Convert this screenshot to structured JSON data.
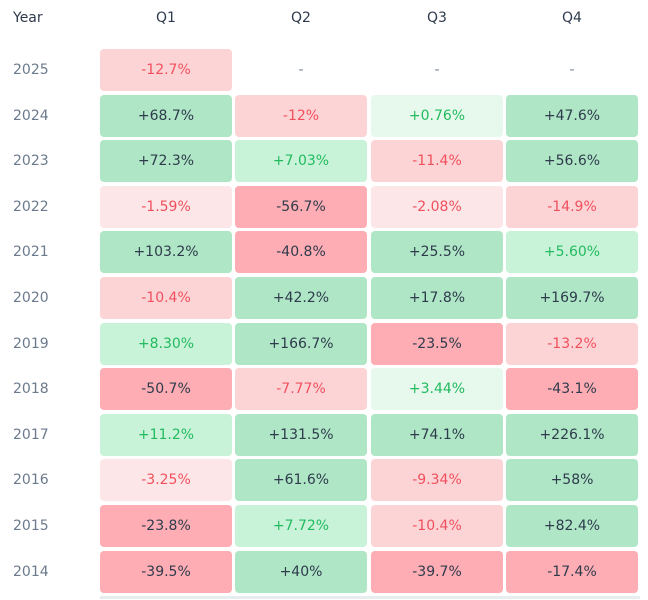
{
  "chart_data": {
    "type": "heatmap",
    "corner_label": "Year",
    "columns": [
      "Q1",
      "Q2",
      "Q3",
      "Q4"
    ],
    "rows": [
      "2025",
      "2024",
      "2023",
      "2022",
      "2021",
      "2020",
      "2019",
      "2018",
      "2017",
      "2016",
      "2015",
      "2014"
    ],
    "cells": [
      [
        "-12.7%",
        "-",
        "-",
        "-"
      ],
      [
        "+68.7%",
        "-12%",
        "+0.76%",
        "+47.6%"
      ],
      [
        "+72.3%",
        "+7.03%",
        "-11.4%",
        "+56.6%"
      ],
      [
        "-1.59%",
        "-56.7%",
        "-2.08%",
        "-14.9%"
      ],
      [
        "+103.2%",
        "-40.8%",
        "+25.5%",
        "+5.60%"
      ],
      [
        "-10.4%",
        "+42.2%",
        "+17.8%",
        "+169.7%"
      ],
      [
        "+8.30%",
        "+166.7%",
        "-23.5%",
        "-13.2%"
      ],
      [
        "-50.7%",
        "-7.77%",
        "+3.44%",
        "-43.1%"
      ],
      [
        "+11.2%",
        "+131.5%",
        "+74.1%",
        "+226.1%"
      ],
      [
        "-3.25%",
        "+61.6%",
        "-9.34%",
        "+58%"
      ],
      [
        "-23.8%",
        "+7.72%",
        "-10.4%",
        "+82.4%"
      ],
      [
        "-39.5%",
        "+40%",
        "-39.7%",
        "-17.4%"
      ]
    ],
    "values": [
      [
        -12.7,
        null,
        null,
        null
      ],
      [
        68.7,
        -12,
        0.76,
        47.6
      ],
      [
        72.3,
        7.03,
        -11.4,
        56.6
      ],
      [
        -1.59,
        -56.7,
        -2.08,
        -14.9
      ],
      [
        103.2,
        -40.8,
        25.5,
        5.6
      ],
      [
        -10.4,
        42.2,
        17.8,
        169.7
      ],
      [
        8.3,
        166.7,
        -23.5,
        -13.2
      ],
      [
        -50.7,
        -7.77,
        3.44,
        -43.1
      ],
      [
        11.2,
        131.5,
        74.1,
        226.1
      ],
      [
        -3.25,
        61.6,
        -9.34,
        58
      ],
      [
        -23.8,
        7.72,
        -10.4,
        82.4
      ],
      [
        -39.5,
        40,
        -39.7,
        -17.4
      ]
    ],
    "colors": {
      "strong_positive_bg": "#aee6c6",
      "strong_positive_text": "#2f3b4c",
      "mild_positive_bg": "#c9f3d8",
      "faint_positive_bg": "#e6f9ec",
      "positive_text": "#22bb5f",
      "strong_negative_bg": "#fdadb3",
      "strong_negative_text": "#2f3b4c",
      "mild_negative_bg": "#fdd4d6",
      "faint_negative_bg": "#fde6e7",
      "negative_text": "#f0505d",
      "empty_text": "#7a8592"
    }
  }
}
